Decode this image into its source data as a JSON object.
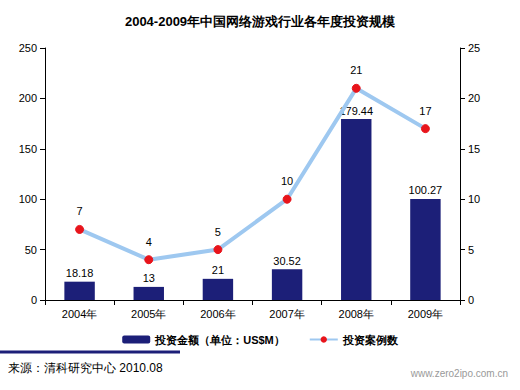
{
  "chart_data": {
    "type": "bar",
    "title": "2004-2009年中国网络游戏行业各年度投资规模",
    "categories": [
      "2004年",
      "2005年",
      "2006年",
      "2007年",
      "2008年",
      "2009年"
    ],
    "series": [
      {
        "name": "投资金额（单位：US$M）",
        "type": "bar",
        "color": "#1c1f78",
        "values": [
          18.18,
          13,
          21,
          30.52,
          179.44,
          100.27
        ]
      },
      {
        "name": "投资案例数",
        "type": "line",
        "axis": "y2",
        "color": "#9ec8f0",
        "marker": "circle",
        "values": [
          7,
          4,
          5,
          10,
          21,
          17
        ]
      }
    ],
    "ylim": [
      0,
      250
    ],
    "yticks": [
      0,
      50,
      100,
      150,
      200,
      250
    ],
    "y2lim": [
      0,
      25
    ],
    "y2ticks": [
      0,
      5,
      10,
      15,
      20,
      25
    ],
    "data_labels": true,
    "grid": false,
    "legend": "bottom",
    "source": "来源：清科研究中心 2010.08",
    "watermark": "www.zero2ipo.com.cn"
  }
}
